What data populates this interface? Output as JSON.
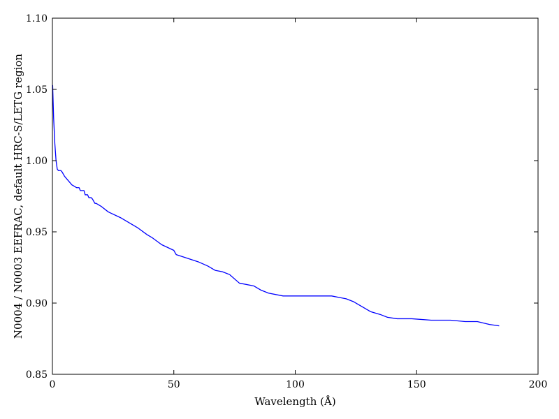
{
  "chart_data": {
    "type": "line",
    "title": "",
    "xlabel": "Wavelength (Å)",
    "ylabel": "N0004 / N0003 EEFRAC, default HRC-S/LETG region",
    "xlim": [
      0,
      200
    ],
    "ylim": [
      0.85,
      1.1
    ],
    "xticks": [
      0,
      50,
      100,
      150,
      200
    ],
    "xtick_labels": [
      "0",
      "50",
      "100",
      "150",
      "200"
    ],
    "yticks": [
      0.85,
      0.9,
      0.95,
      1.0,
      1.05,
      1.1
    ],
    "ytick_labels": [
      "0.85",
      "0.90",
      "0.95",
      "1.00",
      "1.05",
      "1.10"
    ],
    "grid": false,
    "series": [
      {
        "color": "#0000ff",
        "x": [
          0.1,
          0.5,
          1.0,
          1.5,
          2.0,
          2.5,
          3.0,
          3.5,
          4.0,
          5.0,
          6.0,
          7.0,
          8.0,
          9.0,
          10.0,
          11.0,
          11.5,
          12.0,
          13.0,
          13.5,
          14.5,
          15.0,
          16.0,
          16.5,
          17.5,
          18.0,
          20.0,
          23.0,
          28.0,
          35.0,
          39.0,
          41.0,
          45.0,
          50.0,
          51.0,
          60.0,
          64.0,
          67.0,
          70.0,
          73.0,
          77.0,
          83.0,
          86.0,
          89.0,
          95.0,
          100.0,
          103.0,
          105.0,
          108.0,
          112.0,
          115.0,
          118.0,
          121.0,
          124.0,
          127.0,
          131.0,
          135.0,
          138.0,
          142.0,
          148.0,
          156.0,
          164.0,
          170.0,
          175.0,
          180.0,
          184.0
        ],
        "y": [
          1.053,
          1.03,
          1.012,
          1.0,
          0.994,
          0.993,
          0.993,
          0.993,
          0.992,
          0.989,
          0.987,
          0.985,
          0.983,
          0.982,
          0.981,
          0.981,
          0.979,
          0.979,
          0.979,
          0.976,
          0.976,
          0.974,
          0.974,
          0.973,
          0.97,
          0.97,
          0.968,
          0.964,
          0.96,
          0.953,
          0.948,
          0.946,
          0.941,
          0.937,
          0.934,
          0.929,
          0.926,
          0.923,
          0.922,
          0.92,
          0.914,
          0.912,
          0.909,
          0.907,
          0.905,
          0.905,
          0.905,
          0.905,
          0.905,
          0.905,
          0.905,
          0.904,
          0.903,
          0.901,
          0.898,
          0.894,
          0.892,
          0.89,
          0.889,
          0.889,
          0.888,
          0.888,
          0.887,
          0.887,
          0.885,
          0.884
        ]
      }
    ]
  }
}
